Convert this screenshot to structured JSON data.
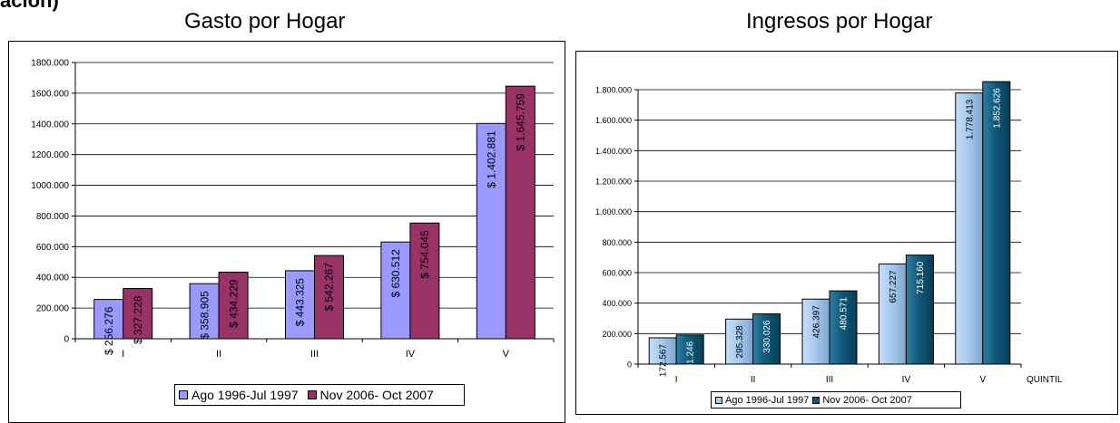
{
  "header_fragment": "ación)",
  "chart_data": [
    {
      "type": "bar",
      "title": "Gasto por Hogar",
      "categories": [
        "I",
        "II",
        "III",
        "IV",
        "V"
      ],
      "xlabel": "",
      "ylabel": "",
      "ylim": [
        0,
        1800000
      ],
      "yticks": [
        "0",
        "200.000",
        "400.000",
        "600.000",
        "800.000",
        "1000.000",
        "1200.000",
        "1400.000",
        "1600.000",
        "1800.000"
      ],
      "grid": true,
      "legend_position": "bottom",
      "series": [
        {
          "name": "Ago 1996-Jul 1997",
          "color": "#9999FF",
          "values": [
            256276,
            358905,
            443325,
            630512,
            1402881
          ],
          "labels": [
            "$ 256.276",
            "$ 358.905",
            "$ 443.325",
            "$ 630.512",
            "$ 1.402.881"
          ]
        },
        {
          "name": "Nov 2006- Oct 2007",
          "color": "#993366",
          "values": [
            327228,
            434229,
            542267,
            754045,
            1645759
          ],
          "labels": [
            "$ 327.228",
            "$ 434.229",
            "$ 542.267",
            "$ 754.045",
            "$ 1.645.759"
          ]
        }
      ]
    },
    {
      "type": "bar",
      "title": "Ingresos por Hogar",
      "categories": [
        "I",
        "II",
        "III",
        "IV",
        "V"
      ],
      "xlabel": "QUINTIL",
      "ylabel": "",
      "ylim": [
        0,
        1800000
      ],
      "yticks": [
        "0",
        "200.000",
        "400.000",
        "600.000",
        "800.000",
        "1.000.000",
        "1.200.000",
        "1.400.000",
        "1.600.000",
        "1.800.000"
      ],
      "grid": true,
      "legend_position": "bottom",
      "series": [
        {
          "name": "Ago 1996-Jul 1997",
          "color": "#A6CAF0",
          "values": [
            172567,
            295328,
            426397,
            657227,
            1778413
          ],
          "labels": [
            "172.567",
            "295.328",
            "426.397",
            "657.227",
            "1.778.413"
          ]
        },
        {
          "name": "Nov 2006- Oct 2007",
          "color": "#0F5A7A",
          "values": [
            191246,
            330026,
            480571,
            715160,
            1852626
          ],
          "labels": [
            "191.246",
            "330.026",
            "480.571",
            "715.160",
            "1.852.626"
          ]
        }
      ]
    }
  ]
}
